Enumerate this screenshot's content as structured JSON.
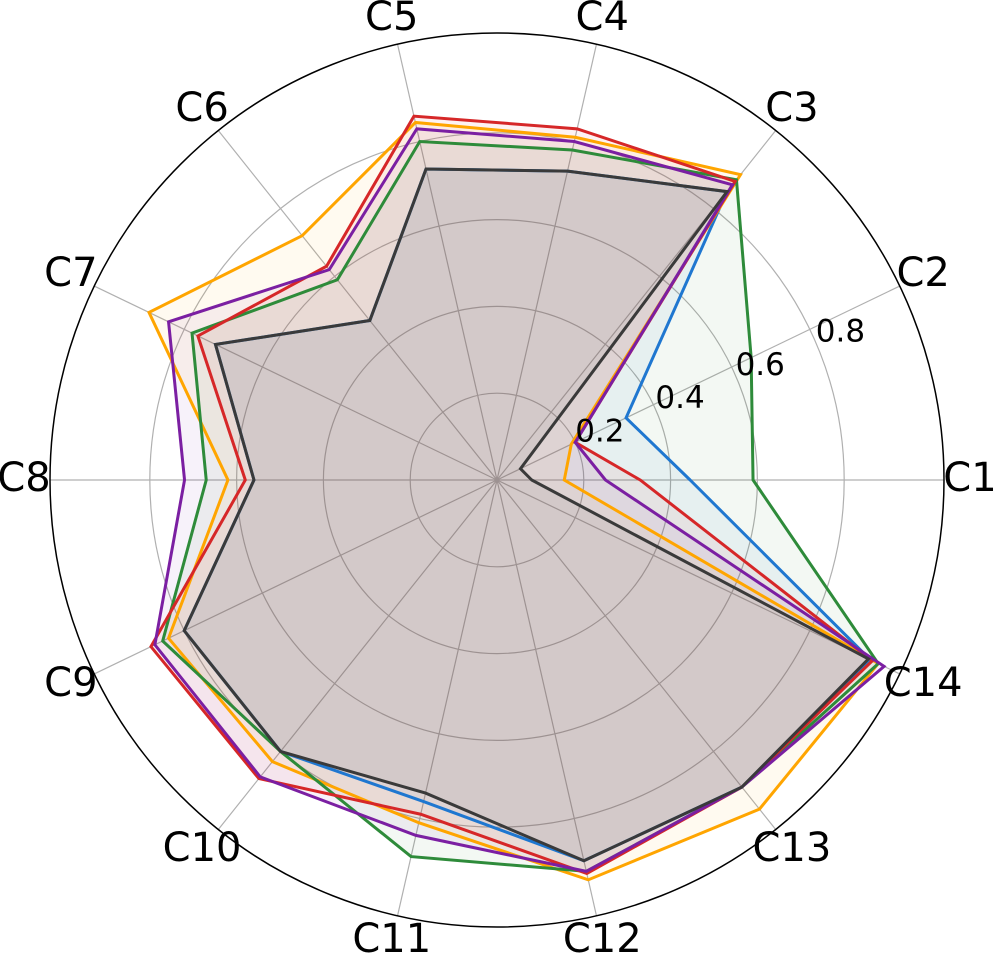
{
  "chart_data": {
    "type": "radar",
    "categories": [
      "C1",
      "C2",
      "C3",
      "C4",
      "C5",
      "C6",
      "C7",
      "C8",
      "C9",
      "C10",
      "C11",
      "C12",
      "C13",
      "C14"
    ],
    "ylim": [
      0,
      1.03
    ],
    "yticks": [
      0.2,
      0.4,
      0.6,
      0.8
    ],
    "grid": true,
    "series": [
      {
        "color": "#1f77d0",
        "values": [
          0.445,
          0.33,
          0.85,
          0.73,
          0.735,
          0.47,
          0.72,
          0.56,
          0.8,
          0.8,
          0.76,
          0.9,
          0.905,
          0.955
        ]
      },
      {
        "color": "#ffa500",
        "values": [
          0.155,
          0.19,
          0.9,
          0.81,
          0.845,
          0.72,
          0.89,
          0.62,
          0.84,
          0.83,
          0.81,
          0.945,
          0.97,
          0.975
        ]
      },
      {
        "color": "#2e8b3a",
        "values": [
          0.59,
          0.65,
          0.885,
          0.78,
          0.8,
          0.59,
          0.78,
          0.67,
          0.855,
          0.8,
          0.89,
          0.925,
          0.905,
          0.975
        ]
      },
      {
        "color": "#d62728",
        "values": [
          0.33,
          0.2,
          0.88,
          0.83,
          0.86,
          0.63,
          0.765,
          0.58,
          0.885,
          0.88,
          0.79,
          0.93,
          0.905,
          0.96
        ]
      },
      {
        "color": "#7b1fa2",
        "values": [
          0.25,
          0.2,
          0.87,
          0.8,
          0.83,
          0.62,
          0.84,
          0.72,
          0.875,
          0.875,
          0.84,
          0.925,
          0.905,
          0.99
        ]
      },
      {
        "color": "#3a3a3a",
        "values": [
          0.08,
          0.06,
          0.85,
          0.73,
          0.735,
          0.47,
          0.72,
          0.56,
          0.8,
          0.8,
          0.74,
          0.9,
          0.905,
          0.95
        ]
      }
    ]
  }
}
